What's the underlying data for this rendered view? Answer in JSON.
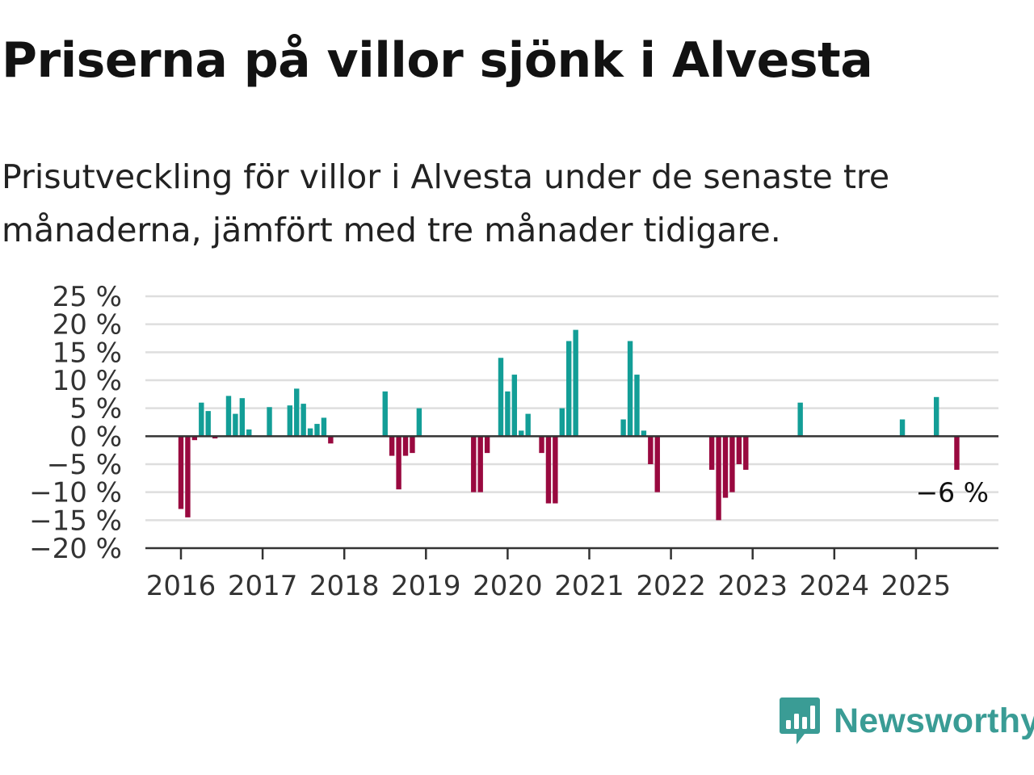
{
  "header": {
    "title": "Priserna på villor sjönk i Alvesta",
    "subtitle": "Prisutveckling för villor i Alvesta under de senaste tre månaderna, jämfört med tre månader tidigare."
  },
  "brand": {
    "name": "Newsworthy",
    "icon": "newsworthy-logo-icon",
    "color": "#3a9c95"
  },
  "colors": {
    "positive": "#139e97",
    "negative": "#99093f",
    "grid": "#dedede",
    "axis": "#333333"
  },
  "chart_data": {
    "type": "bar",
    "x_unit": "month",
    "ylim": [
      -20,
      25
    ],
    "y_ticks": [
      25,
      20,
      15,
      10,
      5,
      0,
      -5,
      -10,
      -15,
      -20
    ],
    "y_tick_labels": [
      "25 %",
      "20 %",
      "15 %",
      "10 %",
      "5 %",
      "0 %",
      "−5 %",
      "−10 %",
      "−15 %",
      "−20 %"
    ],
    "x_tick_labels": [
      "2016",
      "2017",
      "2018",
      "2019",
      "2020",
      "2021",
      "2022",
      "2023",
      "2024",
      "2025"
    ],
    "grid": true,
    "last_value_label": "−6 %",
    "series": [
      {
        "values": [
          {
            "x": "2016-01",
            "y": -13
          },
          {
            "x": "2016-02",
            "y": -14.5
          },
          {
            "x": "2016-03",
            "y": -0.7
          },
          {
            "x": "2016-04",
            "y": 6
          },
          {
            "x": "2016-05",
            "y": 4.5
          },
          {
            "x": "2016-06",
            "y": -0.4
          },
          {
            "x": "2016-08",
            "y": 7.2
          },
          {
            "x": "2016-09",
            "y": 4
          },
          {
            "x": "2016-10",
            "y": 6.8
          },
          {
            "x": "2016-11",
            "y": 1.2
          },
          {
            "x": "2017-02",
            "y": 5.2
          },
          {
            "x": "2017-05",
            "y": 5.5
          },
          {
            "x": "2017-06",
            "y": 8.5
          },
          {
            "x": "2017-07",
            "y": 5.8
          },
          {
            "x": "2017-08",
            "y": 1.4
          },
          {
            "x": "2017-09",
            "y": 2.2
          },
          {
            "x": "2017-10",
            "y": 3.3
          },
          {
            "x": "2017-11",
            "y": -1.3
          },
          {
            "x": "2018-07",
            "y": 8
          },
          {
            "x": "2018-08",
            "y": -3.5
          },
          {
            "x": "2018-09",
            "y": -9.5
          },
          {
            "x": "2018-10",
            "y": -3.5
          },
          {
            "x": "2018-11",
            "y": -3
          },
          {
            "x": "2018-12",
            "y": 5
          },
          {
            "x": "2019-08",
            "y": -10
          },
          {
            "x": "2019-09",
            "y": -10
          },
          {
            "x": "2019-10",
            "y": -3
          },
          {
            "x": "2019-12",
            "y": 14
          },
          {
            "x": "2020-01",
            "y": 8
          },
          {
            "x": "2020-02",
            "y": 11
          },
          {
            "x": "2020-03",
            "y": 1
          },
          {
            "x": "2020-04",
            "y": 4
          },
          {
            "x": "2020-06",
            "y": -3
          },
          {
            "x": "2020-07",
            "y": -12
          },
          {
            "x": "2020-08",
            "y": -12
          },
          {
            "x": "2020-09",
            "y": 5
          },
          {
            "x": "2020-10",
            "y": 17
          },
          {
            "x": "2020-11",
            "y": 19
          },
          {
            "x": "2021-06",
            "y": 3
          },
          {
            "x": "2021-07",
            "y": 17
          },
          {
            "x": "2021-08",
            "y": 11
          },
          {
            "x": "2021-09",
            "y": 1
          },
          {
            "x": "2021-10",
            "y": -5
          },
          {
            "x": "2021-11",
            "y": -10
          },
          {
            "x": "2022-07",
            "y": -6
          },
          {
            "x": "2022-08",
            "y": -15
          },
          {
            "x": "2022-09",
            "y": -11
          },
          {
            "x": "2022-10",
            "y": -10
          },
          {
            "x": "2022-11",
            "y": -5
          },
          {
            "x": "2022-12",
            "y": -6
          },
          {
            "x": "2023-08",
            "y": 6
          },
          {
            "x": "2024-11",
            "y": 3
          },
          {
            "x": "2025-04",
            "y": 7
          },
          {
            "x": "2025-07",
            "y": -6
          }
        ]
      }
    ]
  }
}
